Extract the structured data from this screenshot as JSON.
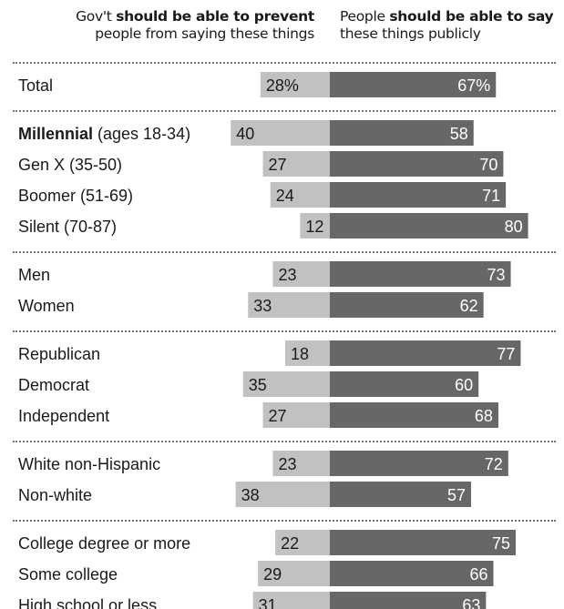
{
  "header": {
    "left_pre": "Gov't ",
    "left_bold": "should be able to prevent",
    "left_line2": "people from saying these things",
    "right_pre": "People ",
    "right_bold": "should be able to say",
    "right_line2": "these things publicly"
  },
  "colors": {
    "left_bar": "#c1c1c1",
    "right_bar": "#676767"
  },
  "chart_data": {
    "type": "bar",
    "series": [
      {
        "name": "Gov't should be able to prevent people from saying these things"
      },
      {
        "name": "People should be able to say these things publicly"
      }
    ],
    "groups": [
      {
        "rows": [
          {
            "label": "Total",
            "left": 28,
            "right": 67,
            "left_text": "28%",
            "right_text": "67%"
          }
        ]
      },
      {
        "rows": [
          {
            "label_bold": "Millennial",
            "label": " (ages 18-34)",
            "left": 40,
            "right": 58,
            "left_text": "40",
            "right_text": "58"
          },
          {
            "label": "Gen X (35-50)",
            "left": 27,
            "right": 70,
            "left_text": "27",
            "right_text": "70"
          },
          {
            "label": "Boomer (51-69)",
            "left": 24,
            "right": 71,
            "left_text": "24",
            "right_text": "71"
          },
          {
            "label": "Silent (70-87)",
            "left": 12,
            "right": 80,
            "left_text": "12",
            "right_text": "80"
          }
        ]
      },
      {
        "rows": [
          {
            "label": "Men",
            "left": 23,
            "right": 73,
            "left_text": "23",
            "right_text": "73"
          },
          {
            "label": "Women",
            "left": 33,
            "right": 62,
            "left_text": "33",
            "right_text": "62"
          }
        ]
      },
      {
        "rows": [
          {
            "label": "Republican",
            "left": 18,
            "right": 77,
            "left_text": "18",
            "right_text": "77"
          },
          {
            "label": "Democrat",
            "left": 35,
            "right": 60,
            "left_text": "35",
            "right_text": "60"
          },
          {
            "label": "Independent",
            "left": 27,
            "right": 68,
            "left_text": "27",
            "right_text": "68"
          }
        ]
      },
      {
        "rows": [
          {
            "label": "White non-Hispanic",
            "left": 23,
            "right": 72,
            "left_text": "23",
            "right_text": "72"
          },
          {
            "label": "Non-white",
            "left": 38,
            "right": 57,
            "left_text": "38",
            "right_text": "57"
          }
        ]
      },
      {
        "rows": [
          {
            "label": "College degree or more",
            "left": 22,
            "right": 75,
            "left_text": "22",
            "right_text": "75"
          },
          {
            "label": "Some college",
            "left": 29,
            "right": 66,
            "left_text": "29",
            "right_text": "66"
          },
          {
            "label": "High school or less",
            "left": 31,
            "right": 63,
            "left_text": "31",
            "right_text": "63"
          }
        ]
      }
    ]
  }
}
